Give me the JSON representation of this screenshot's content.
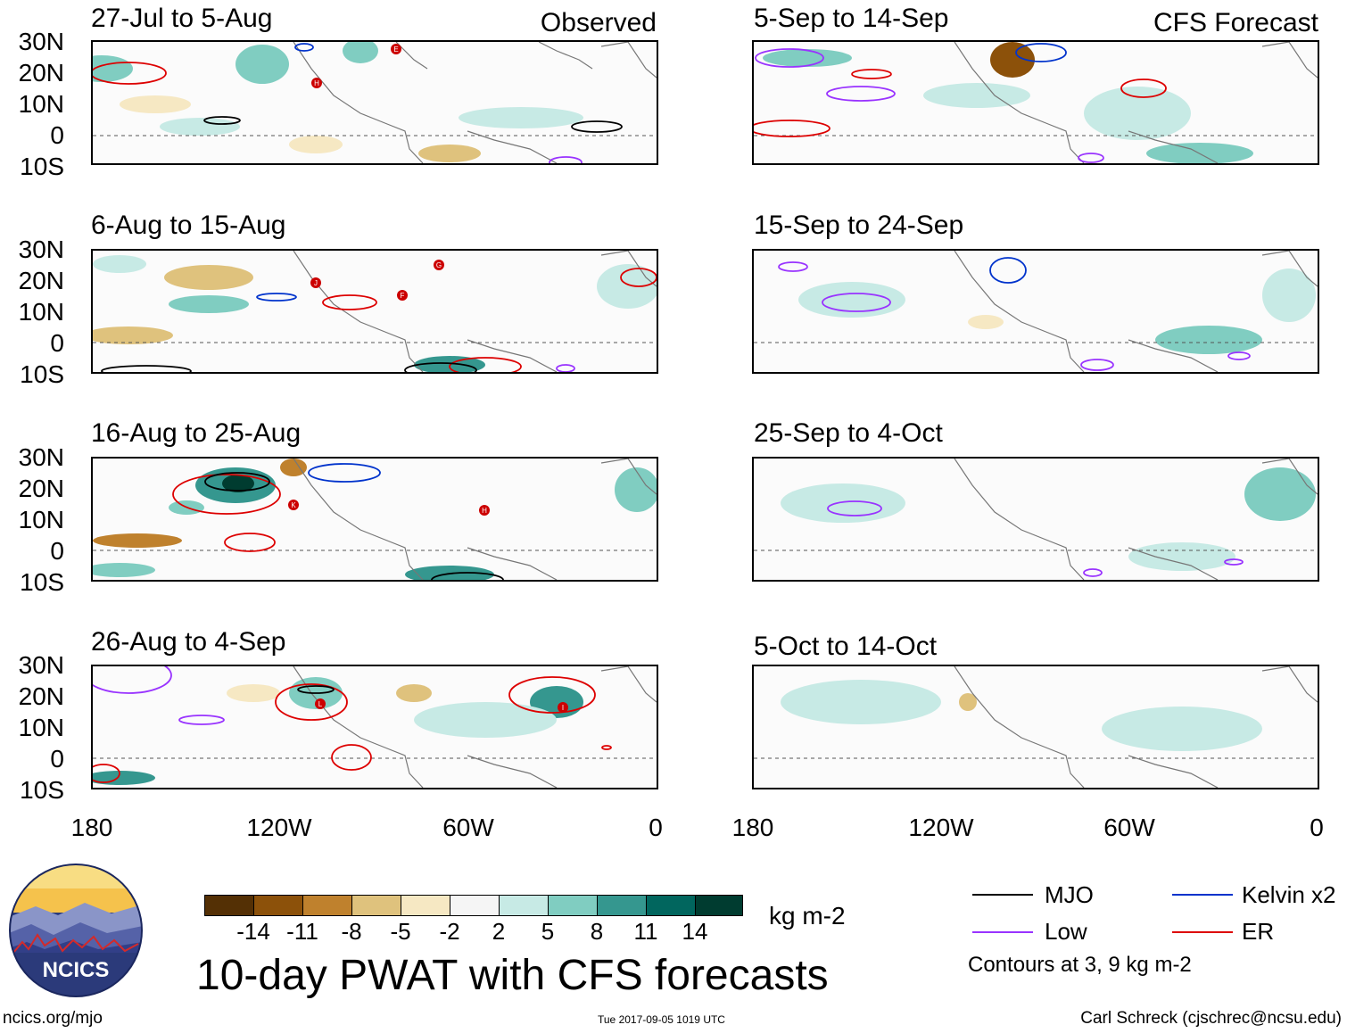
{
  "figure": {
    "main_title": "10-day PWAT with CFS forecasts",
    "observed_label": "Observed",
    "forecast_label": "CFS Forecast",
    "url": "ncics.org/mjo",
    "timestamp": "Tue 2017-09-05 1019 UTC",
    "author": "Carl Schreck (cjschrec@ncsu.edu)",
    "logo_text": "NCICS"
  },
  "panels": {
    "observed": [
      {
        "title": "27-Jul to 5-Aug"
      },
      {
        "title": "6-Aug to 15-Aug"
      },
      {
        "title": "16-Aug to 25-Aug"
      },
      {
        "title": "26-Aug to 4-Sep"
      }
    ],
    "forecast": [
      {
        "title": "5-Sep to 14-Sep"
      },
      {
        "title": "15-Sep to 24-Sep"
      },
      {
        "title": "25-Sep to 4-Oct"
      },
      {
        "title": "5-Oct to 14-Oct"
      }
    ]
  },
  "axes": {
    "lat_labels": [
      "30N",
      "20N",
      "10N",
      "0",
      "10S"
    ],
    "lon_labels": [
      "180",
      "120W",
      "60W",
      "0"
    ]
  },
  "colorbar": {
    "ticks": [
      "-14",
      "-11",
      "-8",
      "-5",
      "-2",
      "2",
      "5",
      "8",
      "11",
      "14"
    ],
    "units": "kg m-2",
    "colors": [
      "#543005",
      "#8c510a",
      "#bf812d",
      "#dfc27d",
      "#f6e8c3",
      "#f5f5f5",
      "#c7eae5",
      "#80cdc1",
      "#35978f",
      "#01665e",
      "#003c30"
    ]
  },
  "legend": {
    "items": [
      {
        "label": "MJO",
        "color": "#000000"
      },
      {
        "label": "Kelvin x2",
        "color": "#0033cc"
      },
      {
        "label": "Low",
        "color": "#9933ff"
      },
      {
        "label": "ER",
        "color": "#dd0000"
      }
    ],
    "note": "Contours at 3, 9 kg m-2"
  },
  "storm_markers": {
    "p0": [
      "E",
      "H"
    ],
    "p1": [
      "G",
      "J",
      "F"
    ],
    "p2": [
      "K",
      "H"
    ],
    "p3": [
      "L",
      "I"
    ]
  }
}
